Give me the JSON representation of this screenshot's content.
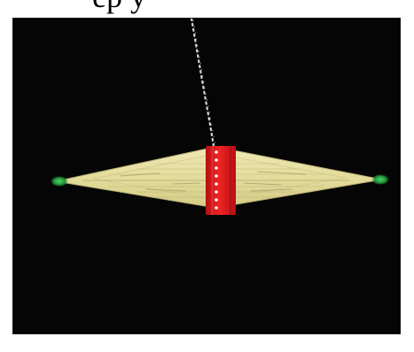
{
  "caption_fragment": "ep     y",
  "colors": {
    "background": "#050505",
    "page": "#ffffff",
    "disk": "#e9e2a2",
    "disk_dark": "#c8bf79",
    "center_band": "#d71919",
    "tip_green": "#2fa247",
    "stream": "#d7d7d7",
    "center_dots": "#ffffff"
  },
  "icons": {
    "spindle": "vertical-stream",
    "disk": "spinning-disk",
    "tips": "green-tip-glow"
  }
}
